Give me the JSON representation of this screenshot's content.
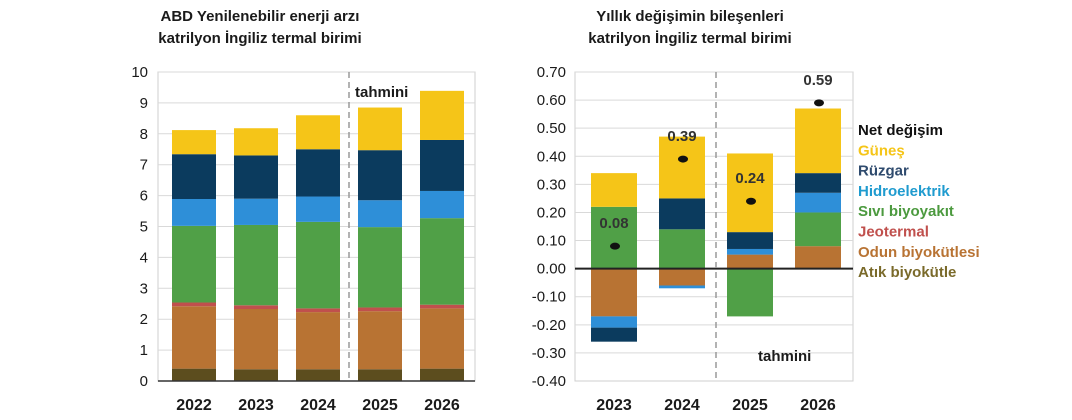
{
  "chart_data": [
    {
      "type": "bar",
      "stacked": true,
      "title_lines": [
        "ABD Yenilenebilir enerji arzı",
        "katrilyon İngiliz termal birimi"
      ],
      "categories": [
        "2022",
        "2023",
        "2024",
        "2025",
        "2026"
      ],
      "yticks": [
        "0",
        "1",
        "2",
        "3",
        "4",
        "5",
        "6",
        "7",
        "8",
        "9",
        "10"
      ],
      "ylim": [
        0,
        10
      ],
      "grid": true,
      "forecast_label": "tahmini",
      "forecast_start_index": 3,
      "series": [
        {
          "name": "Atık biyokütle",
          "color": "#5c4d1e",
          "values": [
            0.4,
            0.38,
            0.38,
            0.38,
            0.4
          ]
        },
        {
          "name": "Odun biyokütlesi",
          "color": "#b87333",
          "values": [
            2.02,
            1.95,
            1.85,
            1.88,
            1.95
          ]
        },
        {
          "name": "Jeotermal",
          "color": "#c0504d",
          "values": [
            0.12,
            0.12,
            0.12,
            0.12,
            0.12
          ]
        },
        {
          "name": "Sıvı biyoyakıt",
          "color": "#50a047",
          "values": [
            2.48,
            2.6,
            2.8,
            2.6,
            2.8
          ]
        },
        {
          "name": "Hidroelektrik",
          "color": "#2e8fd8",
          "values": [
            0.87,
            0.85,
            0.82,
            0.87,
            0.88
          ]
        },
        {
          "name": "Rüzgar",
          "color": "#0b3b5e",
          "values": [
            1.45,
            1.4,
            1.53,
            1.62,
            1.65
          ]
        },
        {
          "name": "Güneş",
          "color": "#f5c518",
          "values": [
            0.78,
            0.88,
            1.1,
            1.38,
            1.59
          ]
        }
      ]
    },
    {
      "type": "bar",
      "stacked": true,
      "title_lines": [
        "Yıllık değişimin bileşenleri",
        "katrilyon İngiliz termal birimi"
      ],
      "categories": [
        "2023",
        "2024",
        "2025",
        "2026"
      ],
      "yticks": [
        "0.70",
        "0.60",
        "0.50",
        "0.40",
        "0.30",
        "0.20",
        "0.10",
        "0.00",
        "-0.10",
        "-0.20",
        "-0.30",
        "-0.40"
      ],
      "ylim": [
        -0.4,
        0.7
      ],
      "grid": true,
      "forecast_label": "tahmini",
      "forecast_start_index": 2,
      "net_change": [
        0.08,
        0.39,
        0.24,
        0.59
      ],
      "net_change_labels": [
        "0.08",
        "0.39",
        "0.24",
        "0.59"
      ],
      "series": [
        {
          "name": "Atık biyokütle",
          "color": "#7a6a2a",
          "values": [
            0.0,
            0.0,
            0.0,
            0.0
          ]
        },
        {
          "name": "Odun biyokütlesi",
          "color": "#b87333",
          "values": [
            -0.17,
            -0.06,
            0.05,
            0.08
          ]
        },
        {
          "name": "Jeotermal",
          "color": "#c0504d",
          "values": [
            0.0,
            0.0,
            0.0,
            0.0
          ]
        },
        {
          "name": "Sıvı biyoyakıt",
          "color": "#50a047",
          "values": [
            0.22,
            0.14,
            -0.17,
            0.12
          ]
        },
        {
          "name": "Hidroelektrik",
          "color": "#2e8fd8",
          "values": [
            -0.04,
            -0.01,
            0.02,
            0.07
          ]
        },
        {
          "name": "Rüzgar",
          "color": "#0b3b5e",
          "values": [
            -0.05,
            0.11,
            0.06,
            0.07
          ]
        },
        {
          "name": "Güneş",
          "color": "#f5c518",
          "values": [
            0.12,
            0.22,
            0.28,
            0.23
          ]
        }
      ],
      "legend": [
        {
          "label": "Net değişim",
          "color": "#111111"
        },
        {
          "label": "Güneş",
          "color": "#f5c518"
        },
        {
          "label": "Rüzgar",
          "color": "#2f4b6e"
        },
        {
          "label": "Hidroelektrik",
          "color": "#1f9bcf"
        },
        {
          "label": "Sıvı biyoyakıt",
          "color": "#4c9a3f"
        },
        {
          "label": "Jeotermal",
          "color": "#c0504d"
        },
        {
          "label": "Odun biyokütlesi",
          "color": "#b87333"
        },
        {
          "label": "Atık biyokütle",
          "color": "#7a6a2a"
        }
      ]
    }
  ]
}
